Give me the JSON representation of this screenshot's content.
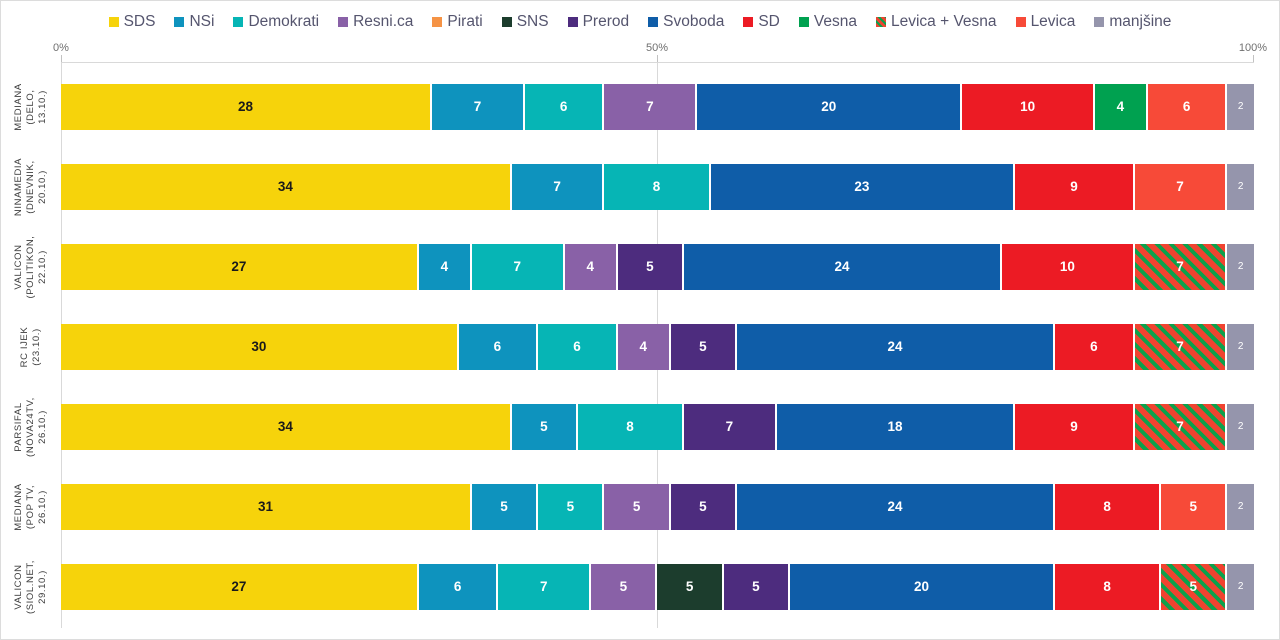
{
  "chart_data": {
    "type": "bar",
    "orientation": "horizontal",
    "stacked": true,
    "normalized": "each row scaled to 100% width",
    "axis_ticks": [
      "0%",
      "50%",
      "100%"
    ],
    "xlim": [
      0,
      100
    ],
    "grid": "single vertical gridline at 50%",
    "legend_position": "top-center",
    "colors": {
      "separator": "#ffffff",
      "axis": "#d9d9d9",
      "legend_text": "#55556e",
      "row_label_text": "#3d3d3d"
    },
    "parties": [
      {
        "name": "SDS",
        "color": "#f6d30b",
        "text_color": "#1a1a1a"
      },
      {
        "name": "NSi",
        "color": "#0e93be"
      },
      {
        "name": "Demokrati",
        "color": "#06b5b5"
      },
      {
        "name": "Resni.ca",
        "color": "#8961a7"
      },
      {
        "name": "Pirati",
        "color": "#f59345"
      },
      {
        "name": "SNS",
        "color": "#1c3d2d"
      },
      {
        "name": "Prerod",
        "color": "#4d2c7e"
      },
      {
        "name": "Svoboda",
        "color": "#0f5da8"
      },
      {
        "name": "SD",
        "color": "#ec1b24"
      },
      {
        "name": "Vesna",
        "color": "#00a150"
      },
      {
        "name": "Levica + Vesna",
        "color": "#f04330",
        "hatch": {
          "base": "#f04330",
          "stripe": "#0ca14c"
        }
      },
      {
        "name": "Levica",
        "color": "#f74a38"
      },
      {
        "name": "manjšine",
        "color": "#9595ac",
        "small_label": true
      }
    ],
    "rows": [
      {
        "label": "MEDIANA\n(DELO,\n13.10.)",
        "segments": [
          {
            "party": "SDS",
            "value": 28
          },
          {
            "party": "NSi",
            "value": 7
          },
          {
            "party": "Demokrati",
            "value": 6
          },
          {
            "party": "Resni.ca",
            "value": 7
          },
          {
            "party": "Svoboda",
            "value": 20
          },
          {
            "party": "SD",
            "value": 10
          },
          {
            "party": "Vesna",
            "value": 4
          },
          {
            "party": "Levica",
            "value": 6
          },
          {
            "party": "manjšine",
            "value": 2
          }
        ]
      },
      {
        "label": "NINAMEDIA\n(DNEVNIK,\n20.10.)",
        "segments": [
          {
            "party": "SDS",
            "value": 34
          },
          {
            "party": "NSi",
            "value": 7
          },
          {
            "party": "Demokrati",
            "value": 8
          },
          {
            "party": "Svoboda",
            "value": 23
          },
          {
            "party": "SD",
            "value": 9
          },
          {
            "party": "Levica",
            "value": 7
          },
          {
            "party": "manjšine",
            "value": 2
          }
        ]
      },
      {
        "label": "VALICON\n(POLITIKON,\n22.10.)",
        "segments": [
          {
            "party": "SDS",
            "value": 27
          },
          {
            "party": "NSi",
            "value": 4
          },
          {
            "party": "Demokrati",
            "value": 7
          },
          {
            "party": "Resni.ca",
            "value": 4
          },
          {
            "party": "Prerod",
            "value": 5
          },
          {
            "party": "Svoboda",
            "value": 24
          },
          {
            "party": "SD",
            "value": 10
          },
          {
            "party": "Levica + Vesna",
            "value": 7
          },
          {
            "party": "manjšine",
            "value": 2
          }
        ]
      },
      {
        "label": "RC IJEK\n(23.10.)",
        "segments": [
          {
            "party": "SDS",
            "value": 30
          },
          {
            "party": "NSi",
            "value": 6
          },
          {
            "party": "Demokrati",
            "value": 6
          },
          {
            "party": "Resni.ca",
            "value": 4
          },
          {
            "party": "Prerod",
            "value": 5
          },
          {
            "party": "Svoboda",
            "value": 24
          },
          {
            "party": "SD",
            "value": 6
          },
          {
            "party": "Levica + Vesna",
            "value": 7
          },
          {
            "party": "manjšine",
            "value": 2
          }
        ]
      },
      {
        "label": "PARSIFAL\n(NOVA24TV,\n26.10.)",
        "segments": [
          {
            "party": "SDS",
            "value": 34
          },
          {
            "party": "NSi",
            "value": 5
          },
          {
            "party": "Demokrati",
            "value": 8
          },
          {
            "party": "Prerod",
            "value": 7
          },
          {
            "party": "Svoboda",
            "value": 18
          },
          {
            "party": "SD",
            "value": 9
          },
          {
            "party": "Levica + Vesna",
            "value": 7
          },
          {
            "party": "manjšine",
            "value": 2
          }
        ]
      },
      {
        "label": "MEDIANA\n(POP TV,\n26.10.)",
        "segments": [
          {
            "party": "SDS",
            "value": 31
          },
          {
            "party": "NSi",
            "value": 5
          },
          {
            "party": "Demokrati",
            "value": 5
          },
          {
            "party": "Resni.ca",
            "value": 5
          },
          {
            "party": "Prerod",
            "value": 5
          },
          {
            "party": "Svoboda",
            "value": 24
          },
          {
            "party": "SD",
            "value": 8
          },
          {
            "party": "Levica",
            "value": 5
          },
          {
            "party": "manjšine",
            "value": 2
          }
        ]
      },
      {
        "label": "VALICON\n(SIOL.NET,\n29.10.)",
        "segments": [
          {
            "party": "SDS",
            "value": 27
          },
          {
            "party": "NSi",
            "value": 6
          },
          {
            "party": "Demokrati",
            "value": 7
          },
          {
            "party": "Resni.ca",
            "value": 5
          },
          {
            "party": "SNS",
            "value": 5
          },
          {
            "party": "Prerod",
            "value": 5
          },
          {
            "party": "Svoboda",
            "value": 20
          },
          {
            "party": "SD",
            "value": 8
          },
          {
            "party": "Levica + Vesna",
            "value": 5
          },
          {
            "party": "manjšine",
            "value": 2
          }
        ]
      }
    ]
  }
}
